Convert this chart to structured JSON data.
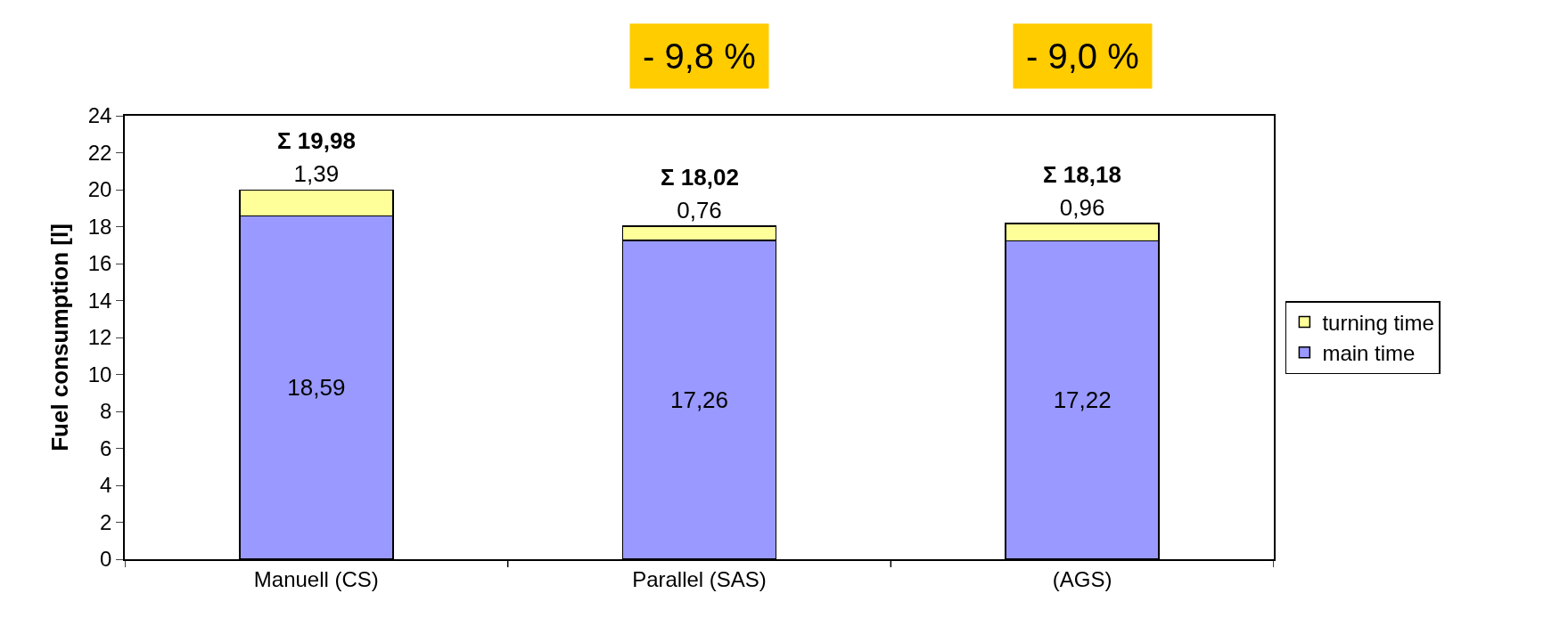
{
  "chart_data": {
    "type": "bar",
    "stacked": true,
    "ylabel": "Fuel consumption [l]",
    "categories": [
      "Manuell (CS)",
      "Parallel (SAS)",
      "(AGS)"
    ],
    "series": [
      {
        "name": "main time",
        "color": "#9999ff",
        "values": [
          18.59,
          17.26,
          17.22
        ],
        "value_labels": [
          "18,59",
          "17,26",
          "17,22"
        ]
      },
      {
        "name": "turning time",
        "color": "#ffff99",
        "values": [
          1.39,
          0.76,
          0.96
        ],
        "value_labels": [
          "1,39",
          "0,76",
          "0,96"
        ]
      }
    ],
    "totals": [
      "Σ 19,98",
      "Σ 18,02",
      "Σ 18,18"
    ],
    "annotations": [
      "- 9,8 %",
      "- 9,0 %"
    ],
    "ylim": [
      0,
      24
    ],
    "yticks": [
      0,
      2,
      4,
      6,
      8,
      10,
      12,
      14,
      16,
      18,
      20,
      22,
      24
    ],
    "legend": "right"
  }
}
